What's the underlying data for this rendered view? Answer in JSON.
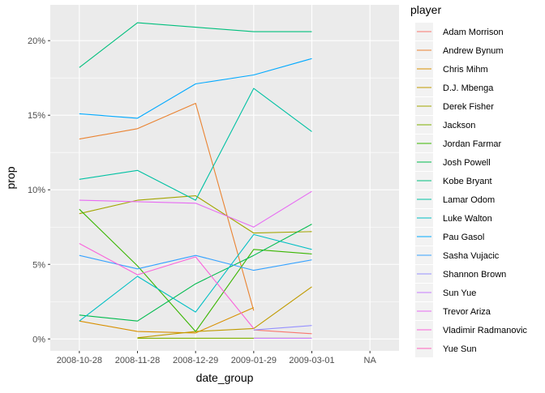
{
  "chart_data": {
    "type": "line",
    "xlabel": "date_group",
    "ylabel": "prop",
    "categories": [
      "2008-10-28",
      "2008-11-28",
      "2008-12-29",
      "2009-01-29",
      "2009-03-01",
      "NA"
    ],
    "y_ticks": [
      0,
      0.05,
      0.1,
      0.15,
      0.2
    ],
    "y_tick_labels": [
      "0%",
      "5%",
      "10%",
      "15%",
      "20%"
    ],
    "ylim": [
      -0.008,
      0.224
    ],
    "grid": true,
    "legend_title": "player",
    "legend_position": "right",
    "series": [
      {
        "name": "Adam Morrison",
        "color": "#F8766D",
        "values": [
          null,
          null,
          null,
          0.006,
          0.0035,
          null
        ]
      },
      {
        "name": "Andrew Bynum",
        "color": "#EA8331",
        "values": [
          0.134,
          0.141,
          0.158,
          0.019,
          null,
          null
        ]
      },
      {
        "name": "Chris Mihm",
        "color": "#D89000",
        "values": [
          0.012,
          0.005,
          0.004,
          0.021,
          null,
          null
        ]
      },
      {
        "name": "D.J. Mbenga",
        "color": "#C09B00",
        "values": [
          null,
          0.0008,
          0.005,
          0.007,
          0.035,
          null
        ]
      },
      {
        "name": "Derek Fisher",
        "color": "#A3A500",
        "values": [
          0.084,
          0.093,
          0.096,
          0.071,
          0.072,
          null
        ]
      },
      {
        "name": "Jackson",
        "color": "#7CAE00",
        "values": [
          null,
          0.0005,
          0.0005,
          0.0005,
          0.0005,
          null
        ]
      },
      {
        "name": "Jordan Farmar",
        "color": "#39B600",
        "values": [
          0.087,
          0.049,
          0.005,
          0.06,
          0.057,
          null
        ]
      },
      {
        "name": "Josh Powell",
        "color": "#00BB4E",
        "values": [
          0.016,
          0.012,
          0.037,
          0.056,
          0.077,
          null
        ]
      },
      {
        "name": "Kobe Bryant",
        "color": "#00BF7D",
        "values": [
          0.182,
          0.212,
          0.209,
          0.206,
          0.206,
          null
        ]
      },
      {
        "name": "Lamar Odom",
        "color": "#00C1A3",
        "values": [
          0.107,
          0.113,
          0.093,
          0.168,
          0.139,
          null
        ]
      },
      {
        "name": "Luke Walton",
        "color": "#00BFC4",
        "values": [
          0.012,
          0.042,
          0.018,
          0.07,
          0.06,
          null
        ]
      },
      {
        "name": "Pau Gasol",
        "color": "#00A9FF",
        "values": [
          0.151,
          0.148,
          0.171,
          0.177,
          0.188,
          null
        ]
      },
      {
        "name": "Sasha Vujacic",
        "color": "#35A2FF",
        "values": [
          0.056,
          0.047,
          0.056,
          0.046,
          0.053,
          null
        ]
      },
      {
        "name": "Shannon Brown",
        "color": "#9590FF",
        "values": [
          null,
          null,
          null,
          0.006,
          0.009,
          null
        ]
      },
      {
        "name": "Sun Yue",
        "color": "#C77CFF",
        "values": [
          null,
          null,
          null,
          0.0005,
          0.0005,
          null
        ]
      },
      {
        "name": "Trevor Ariza",
        "color": "#E76BF3",
        "values": [
          0.093,
          0.092,
          0.091,
          0.075,
          0.099,
          null
        ]
      },
      {
        "name": "Vladimir Radmanovic",
        "color": "#FA62DB",
        "values": [
          0.064,
          0.043,
          0.055,
          0.007,
          null,
          null
        ]
      },
      {
        "name": "Yue Sun",
        "color": "#FF62BC",
        "values": [
          null,
          null,
          null,
          null,
          null,
          null
        ]
      }
    ]
  }
}
